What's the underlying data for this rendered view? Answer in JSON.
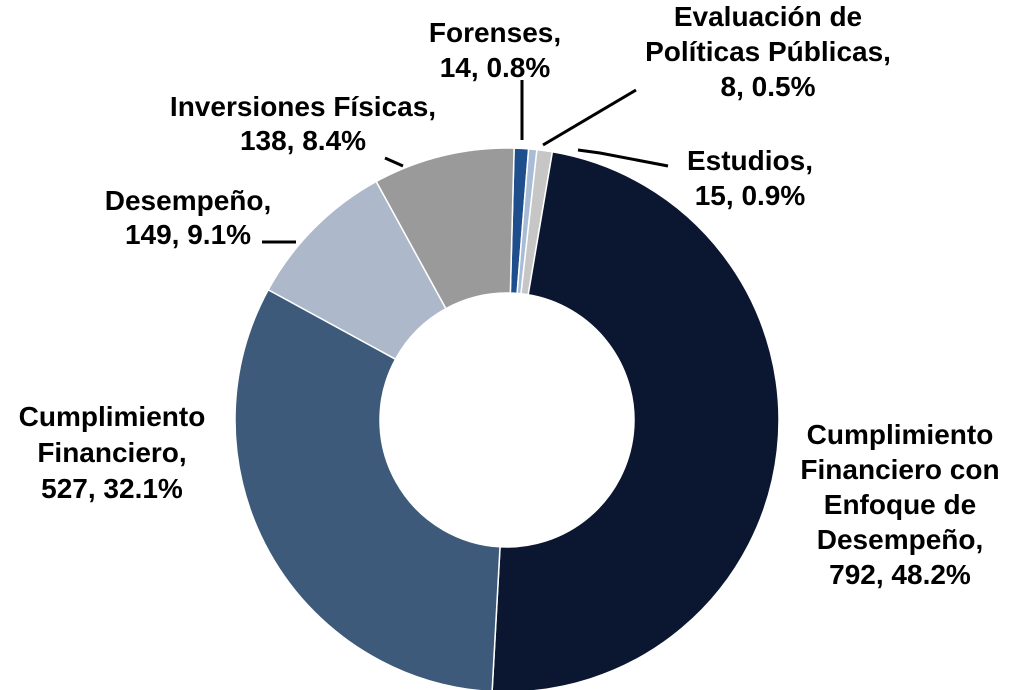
{
  "chart_data": {
    "type": "donut",
    "categories": [
      "Forenses,",
      "Evaluación de Políticas Públicas,",
      "Estudios,",
      "Cumplimiento Financiero con Enfoque de Desempeño,",
      "Cumplimiento Financiero,",
      "Desempeño,",
      "Inversiones Físicas,"
    ],
    "values": [
      14,
      8,
      15,
      792,
      527,
      149,
      138
    ],
    "value_labels": [
      "14, 0.8%",
      "8, 0.5%",
      "15, 0.9%",
      "792, 48.2%",
      "527, 32.1%",
      "149, 9.1%",
      "138, 8.4%"
    ],
    "colors": [
      "#1f4e8c",
      "#a9bcd6",
      "#c6c6c6",
      "#0b1730",
      "#3d5a7a",
      "#adb9ca",
      "#9a9a9a"
    ]
  }
}
